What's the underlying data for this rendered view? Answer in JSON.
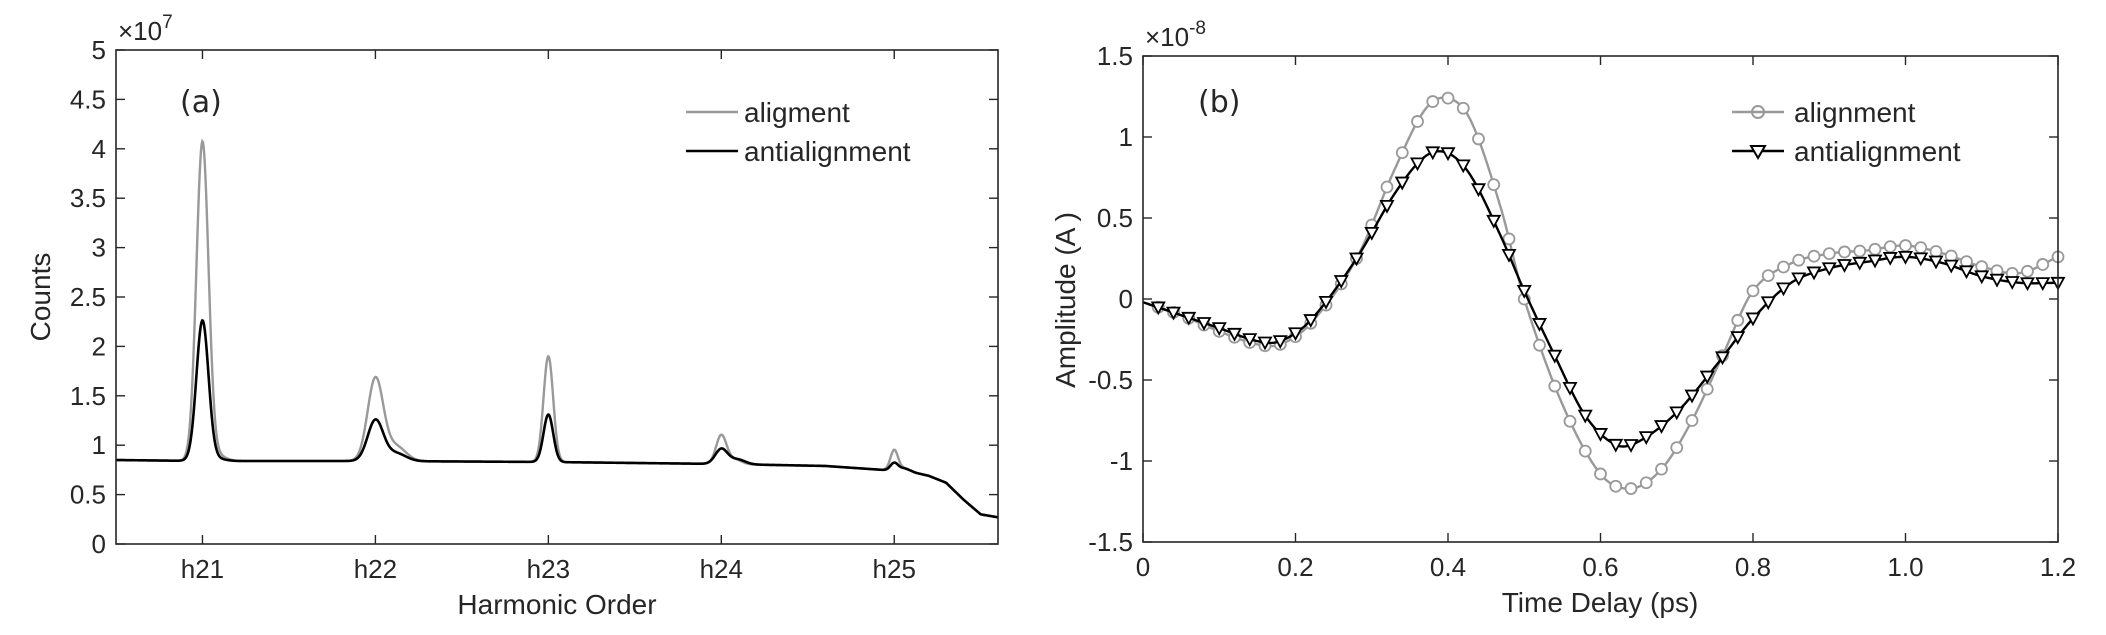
{
  "chart_data": [
    {
      "type": "line",
      "panel_label": "(a)",
      "xlabel": "Harmonic Order",
      "ylabel": "Counts",
      "exponent_label": "×10",
      "exponent_power": "7",
      "xlim": [
        20.5,
        25.6
      ],
      "ylim": [
        0,
        5
      ],
      "x_ticks": [
        21,
        22,
        23,
        24,
        25
      ],
      "x_tick_labels": [
        "h21",
        "h22",
        "h23",
        "h24",
        "h25"
      ],
      "y_ticks": [
        0,
        0.5,
        1,
        1.5,
        2,
        2.5,
        3,
        3.5,
        4,
        4.5,
        5
      ],
      "y_tick_labels": [
        "0",
        "0.5",
        "1",
        "1.5",
        "2",
        "2.5",
        "3",
        "3.5",
        "4",
        "4.5",
        "5"
      ],
      "legend_position": "top-right",
      "baseline": [
        [
          20.5,
          0.85
        ],
        [
          21.0,
          0.84
        ],
        [
          22.0,
          0.84
        ],
        [
          23.0,
          0.83
        ],
        [
          24.0,
          0.81
        ],
        [
          24.6,
          0.79
        ],
        [
          25.1,
          0.73
        ],
        [
          25.2,
          0.69
        ],
        [
          25.3,
          0.62
        ],
        [
          25.4,
          0.45
        ],
        [
          25.5,
          0.3
        ],
        [
          25.6,
          0.27
        ]
      ],
      "series": [
        {
          "name": "aligment",
          "color": "#999999",
          "peaks": [
            {
              "center": 21.0,
              "height": 4.07,
              "width": 0.035,
              "shoulder": 0.05
            },
            {
              "center": 22.0,
              "height": 1.67,
              "width": 0.045,
              "shoulder": 0.15
            },
            {
              "center": 23.0,
              "height": 1.9,
              "width": 0.028,
              "shoulder": 0.0
            },
            {
              "center": 24.0,
              "height": 1.1,
              "width": 0.03,
              "shoulder": 0.05
            },
            {
              "center": 25.0,
              "height": 0.95,
              "width": 0.022,
              "shoulder": 0.03
            }
          ]
        },
        {
          "name": "antialignment",
          "color": "#000000",
          "peaks": [
            {
              "center": 21.0,
              "height": 2.26,
              "width": 0.035,
              "shoulder": 0.02
            },
            {
              "center": 22.0,
              "height": 1.25,
              "width": 0.045,
              "shoulder": 0.08
            },
            {
              "center": 23.0,
              "height": 1.31,
              "width": 0.028,
              "shoulder": 0.0
            },
            {
              "center": 24.0,
              "height": 0.96,
              "width": 0.035,
              "shoulder": 0.05
            },
            {
              "center": 25.0,
              "height": 0.82,
              "width": 0.022,
              "shoulder": 0.03
            }
          ]
        }
      ]
    },
    {
      "type": "line",
      "panel_label": "(b)",
      "xlabel": "Time Delay (ps)",
      "ylabel": "Amplitude (A )",
      "exponent_label": "×10",
      "exponent_power": "-8",
      "xlim": [
        0,
        1.2
      ],
      "ylim": [
        -1.5,
        1.5
      ],
      "x_ticks": [
        0,
        0.2,
        0.4,
        0.6,
        0.8,
        1.0,
        1.2
      ],
      "x_tick_labels": [
        "0",
        "0.2",
        "0.4",
        "0.6",
        "0.8",
        "1.0",
        "1.2"
      ],
      "y_ticks": [
        -1.5,
        -1,
        -0.5,
        0,
        0.5,
        1,
        1.5
      ],
      "y_tick_labels": [
        "-1.5",
        "-1",
        "-0.5",
        "0",
        "0.5",
        "1",
        "1.5"
      ],
      "legend_position": "top-right",
      "sample_step": 0.02,
      "series": [
        {
          "name": "alignment",
          "color": "#999999",
          "marker": "circle",
          "points": [
            [
              0.0,
              -0.02
            ],
            [
              0.05,
              -0.1
            ],
            [
              0.1,
              -0.2
            ],
            [
              0.15,
              -0.28
            ],
            [
              0.18,
              -0.28
            ],
            [
              0.22,
              -0.15
            ],
            [
              0.28,
              0.25
            ],
            [
              0.33,
              0.8
            ],
            [
              0.37,
              1.17
            ],
            [
              0.4,
              1.24
            ],
            [
              0.43,
              1.1
            ],
            [
              0.47,
              0.55
            ],
            [
              0.5,
              0.0
            ],
            [
              0.55,
              -0.65
            ],
            [
              0.6,
              -1.08
            ],
            [
              0.64,
              -1.17
            ],
            [
              0.68,
              -1.05
            ],
            [
              0.72,
              -0.75
            ],
            [
              0.76,
              -0.35
            ],
            [
              0.8,
              0.05
            ],
            [
              0.85,
              0.22
            ],
            [
              0.9,
              0.28
            ],
            [
              0.95,
              0.3
            ],
            [
              1.0,
              0.33
            ],
            [
              1.05,
              0.28
            ],
            [
              1.1,
              0.2
            ],
            [
              1.15,
              0.16
            ],
            [
              1.2,
              0.26
            ]
          ]
        },
        {
          "name": "antialignment",
          "color": "#000000",
          "marker": "triangle-down",
          "points": [
            [
              0.0,
              -0.02
            ],
            [
              0.05,
              -0.1
            ],
            [
              0.1,
              -0.18
            ],
            [
              0.15,
              -0.26
            ],
            [
              0.18,
              -0.26
            ],
            [
              0.22,
              -0.13
            ],
            [
              0.28,
              0.25
            ],
            [
              0.33,
              0.65
            ],
            [
              0.37,
              0.88
            ],
            [
              0.4,
              0.9
            ],
            [
              0.43,
              0.76
            ],
            [
              0.47,
              0.38
            ],
            [
              0.5,
              0.05
            ],
            [
              0.54,
              -0.35
            ],
            [
              0.58,
              -0.72
            ],
            [
              0.62,
              -0.9
            ],
            [
              0.65,
              -0.88
            ],
            [
              0.7,
              -0.7
            ],
            [
              0.75,
              -0.42
            ],
            [
              0.8,
              -0.12
            ],
            [
              0.85,
              0.1
            ],
            [
              0.9,
              0.19
            ],
            [
              0.95,
              0.23
            ],
            [
              1.0,
              0.26
            ],
            [
              1.05,
              0.22
            ],
            [
              1.1,
              0.14
            ],
            [
              1.15,
              0.1
            ],
            [
              1.2,
              0.1
            ]
          ]
        }
      ]
    }
  ]
}
